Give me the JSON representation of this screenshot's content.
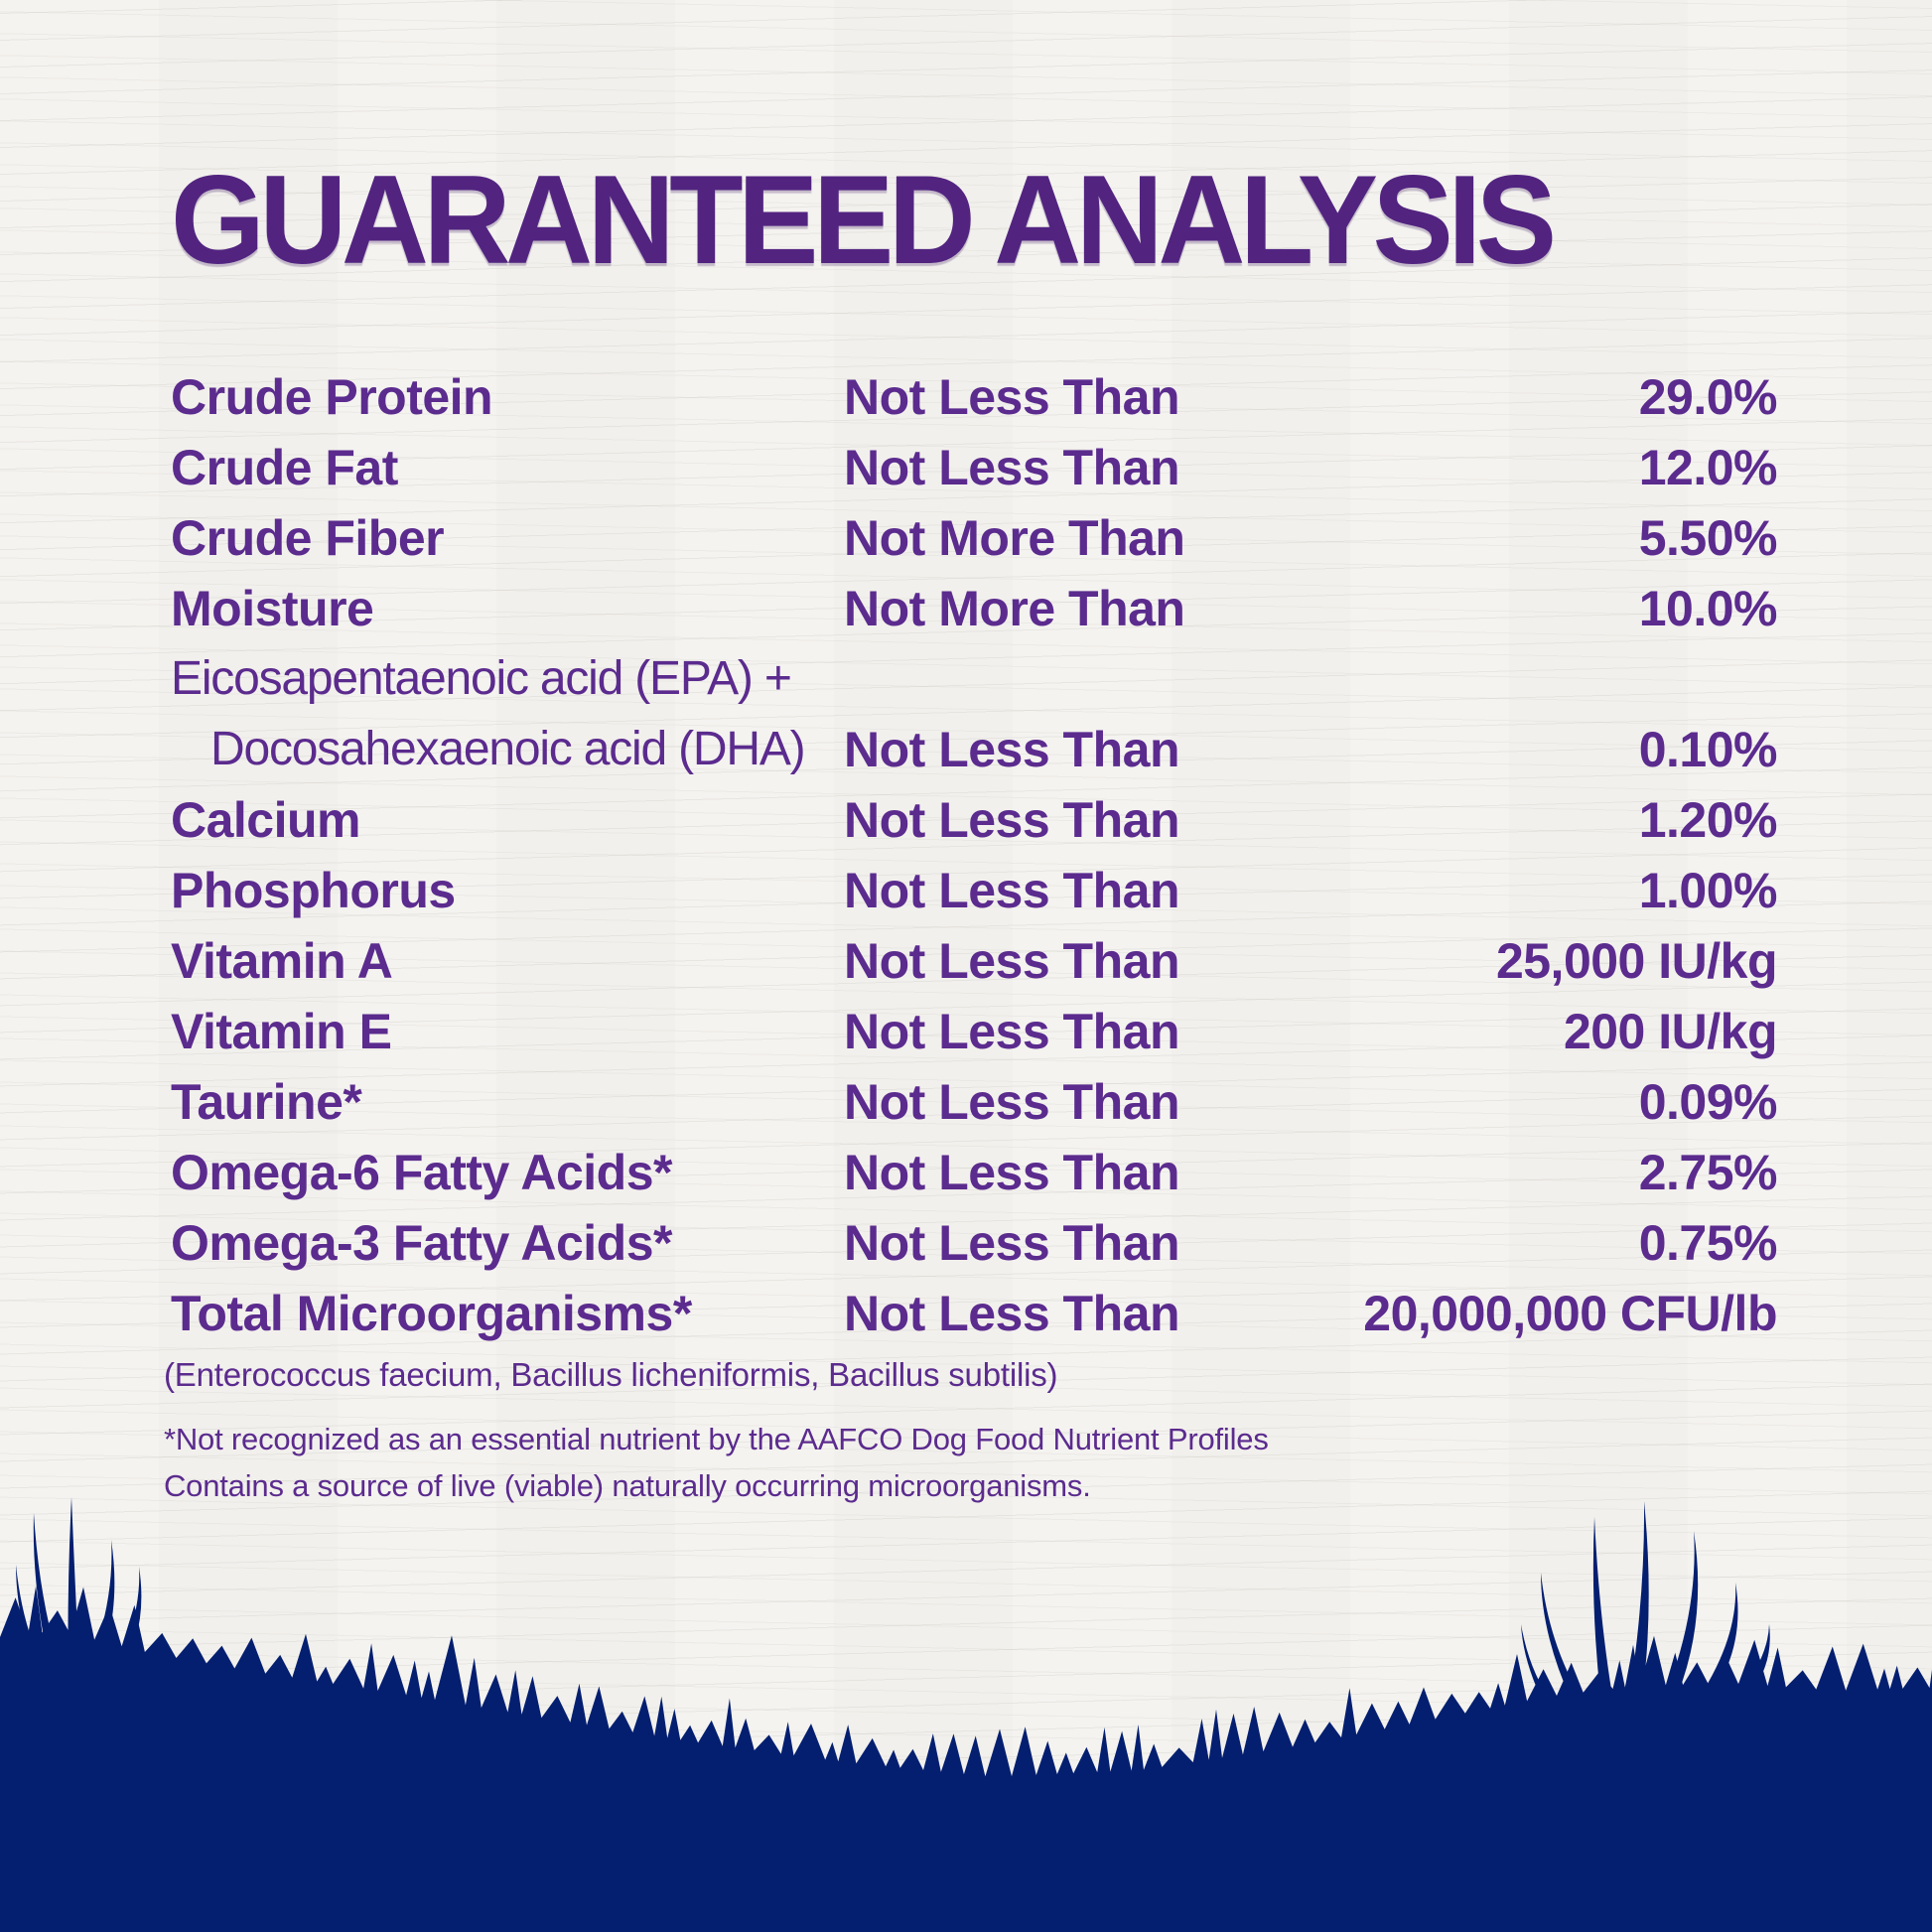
{
  "title": "GUARANTEED ANALYSIS",
  "colors": {
    "title": "#522480",
    "text": "#5b2b8e",
    "grass": "#041f70",
    "background": "#f6f5f2"
  },
  "table": {
    "rows": [
      {
        "name": "Crude Protein",
        "condition": "Not Less Than",
        "value": "29.0%"
      },
      {
        "name": "Crude Fat",
        "condition": "Not Less Than",
        "value": "12.0%"
      },
      {
        "name": "Crude Fiber",
        "condition": "Not More Than",
        "value": "5.50%"
      },
      {
        "name": "Moisture",
        "condition": "Not More Than",
        "value": "10.0%"
      },
      {
        "name_top": "Eicosapentaenoic acid (EPA) +",
        "name": "Docosahexaenoic acid (DHA)",
        "light": true,
        "condition": "Not Less Than",
        "value": "0.10%"
      },
      {
        "name": "Calcium",
        "condition": "Not Less Than",
        "value": "1.20%"
      },
      {
        "name": "Phosphorus",
        "condition": "Not Less Than",
        "value": "1.00%"
      },
      {
        "name": "Vitamin A",
        "condition": "Not Less Than",
        "value": "25,000 IU/kg"
      },
      {
        "name": "Vitamin E",
        "condition": "Not Less Than",
        "value": "200 IU/kg"
      },
      {
        "name": "Taurine*",
        "condition": "Not Less Than",
        "value": "0.09%"
      },
      {
        "name": "Omega-6 Fatty Acids*",
        "condition": "Not Less Than",
        "value": "2.75%"
      },
      {
        "name": "Omega-3 Fatty Acids*",
        "condition": "Not Less Than",
        "value": "0.75%"
      },
      {
        "name": "Total Microorganisms*",
        "condition": "Not Less Than",
        "value": "20,000,000 CFU/lb"
      }
    ]
  },
  "footnotes": {
    "organisms": "(Enterococcus faecium, Bacillus licheniformis, Bacillus subtilis)",
    "note1": "*Not recognized as an essential nutrient by the AAFCO Dog Food Nutrient Profiles",
    "note2": "Contains a source of live (viable) naturally occurring microorganisms."
  }
}
